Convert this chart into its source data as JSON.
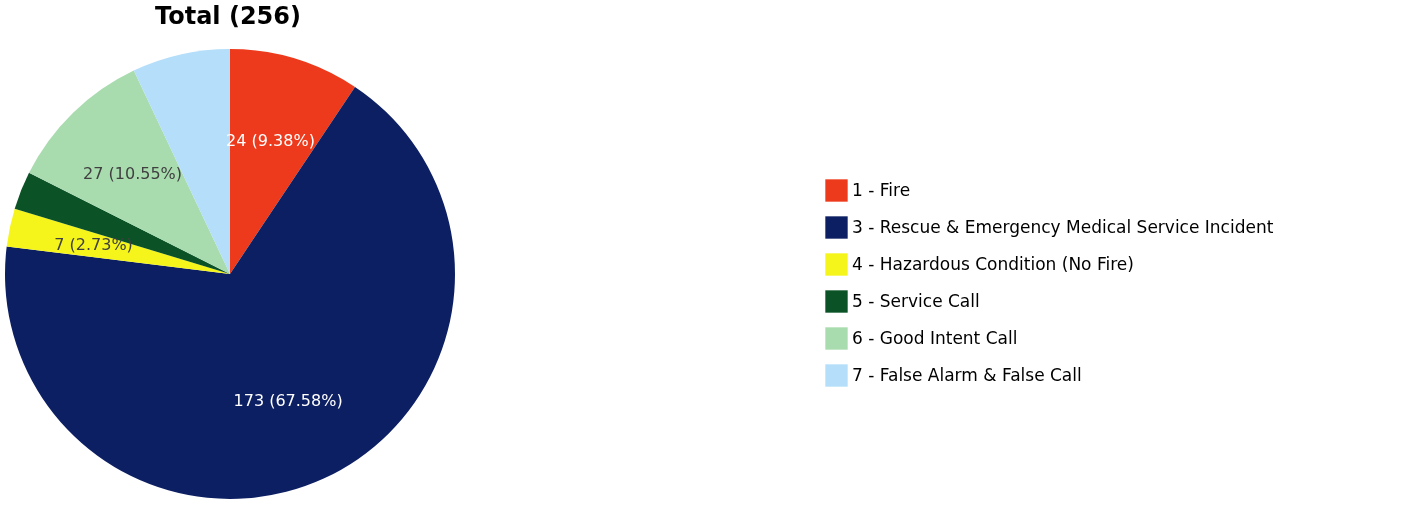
{
  "chart_data": {
    "type": "pie",
    "title": "Total (256)",
    "categories": [
      "1 - Fire",
      "3 - Rescue & Emergency Medical Service Incident",
      "4 - Hazardous Condition (No Fire)",
      "5 - Service Call",
      "6 - Good Intent Call",
      "7 - False Alarm & False Call"
    ],
    "values": [
      24,
      173,
      7,
      7,
      27,
      18
    ],
    "colors": [
      "#ee3a1c",
      "#0d1f63",
      "#f5f51c",
      "#0b5226",
      "#a8dcae",
      "#b4defa"
    ],
    "value_labels": [
      "24 (9.38%)",
      "173 (67.58%)",
      "7 (2.73%)",
      null,
      "27 (10.55%)",
      null
    ],
    "legend": "right"
  }
}
